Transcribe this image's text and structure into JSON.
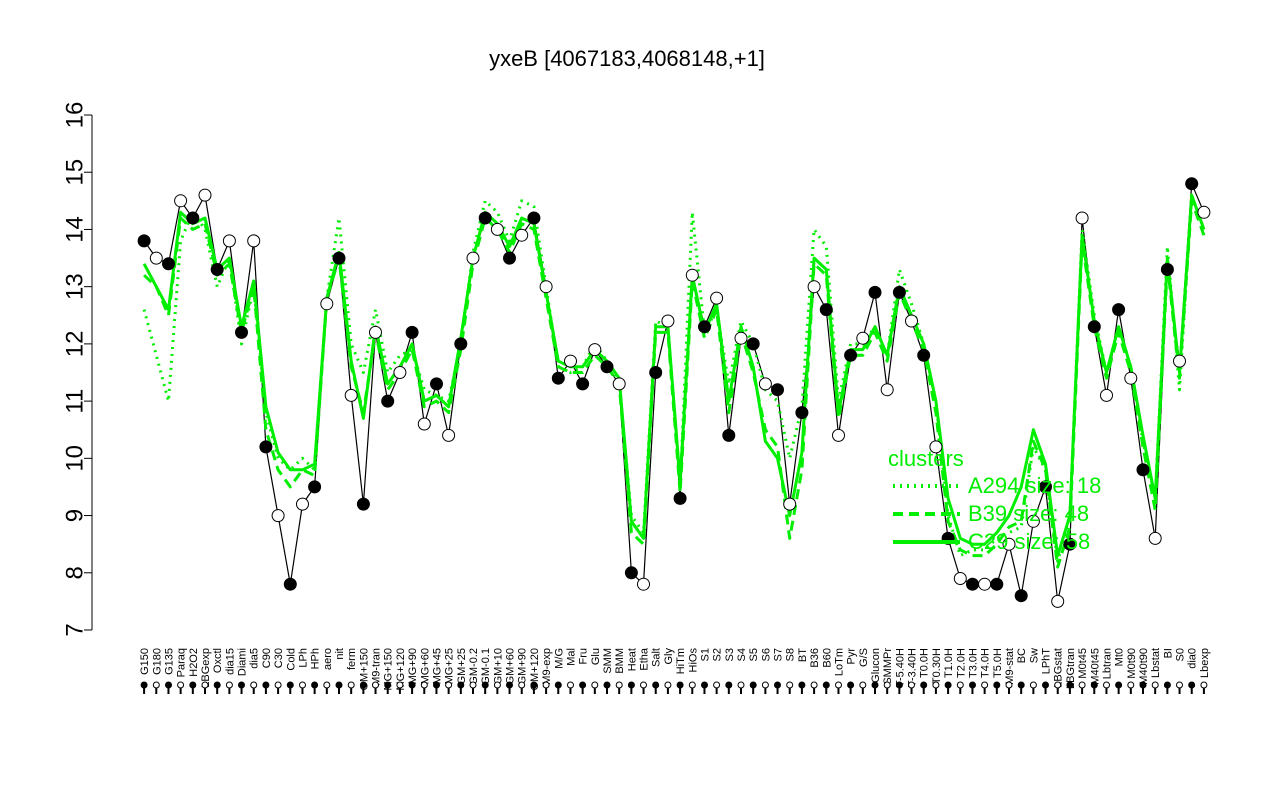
{
  "chart_data": {
    "type": "line",
    "title": "yxeB [4067183,4068148,+1]",
    "xlabel": "",
    "ylabel": "",
    "ylim": [
      7,
      16
    ],
    "yticks": [
      7,
      8,
      9,
      10,
      11,
      12,
      13,
      14,
      15,
      16
    ],
    "grid": false,
    "x_tick_labels": [
      "G150",
      "G180",
      "G135",
      "Paraq",
      "H2O2",
      "LBGexp",
      "Oxctl",
      "dia15",
      "Diami",
      "dia5",
      "C90",
      "C30",
      "Cold",
      "LPh",
      "HPh",
      "aero",
      "nit",
      "ferm",
      "GM+150",
      "M9-tran",
      "MG+150",
      "MG+120",
      "MG+90",
      "MG+60",
      "MG+45",
      "MG+25",
      "GM+25",
      "GM-0.2",
      "GM-0.1",
      "GM+10",
      "GM+60",
      "GM+90",
      "GM+120",
      "M9-exp",
      "M/G",
      "Mal",
      "Fru",
      "Glu",
      "SMM",
      "BMM",
      "Heat",
      "Etha",
      "Salt",
      "Gly",
      "HiTm",
      "HiOs",
      "S1",
      "S2",
      "S3",
      "S4",
      "S5",
      "S6",
      "S7",
      "S8",
      "BT",
      "B36",
      "B60",
      "LoTm",
      "Pyr",
      "G/S",
      "Glucon",
      "SMMPr",
      "T-5.40H",
      "T-3.40H",
      "T0.0H",
      "T0.30H",
      "T1.0H",
      "T2.0H",
      "T3.0H",
      "T4.0H",
      "T5.0H",
      "M9-stat",
      "BC",
      "Sw",
      "LPhT",
      "LBGstat",
      "LBGtran",
      "M0t45",
      "M40t45",
      "Lbtran",
      "Mt0",
      "M0t90",
      "M40t90",
      "Lbstat",
      "BI",
      "S0",
      "dia0",
      "Lbexp"
    ],
    "legend": {
      "title": "clusters",
      "entries": [
        {
          "name": "A294 size: 18",
          "style": "dotted"
        },
        {
          "name": "B39 size: 48",
          "style": "dashed"
        },
        {
          "name": "C29 size: 58",
          "style": "solid"
        }
      ],
      "placement": "right"
    },
    "series": [
      {
        "name": "profile",
        "color": "#000000",
        "style": "solid-with-markers",
        "values": [
          13.8,
          13.5,
          13.4,
          14.5,
          14.2,
          14.6,
          13.3,
          13.8,
          12.2,
          13.8,
          10.2,
          9.0,
          7.8,
          9.2,
          9.5,
          12.7,
          13.5,
          11.1,
          9.2,
          12.2,
          11.0,
          11.5,
          12.2,
          10.6,
          11.3,
          10.4,
          12.0,
          13.5,
          14.2,
          14.0,
          13.5,
          13.9,
          14.2,
          13.0,
          11.4,
          11.7,
          11.3,
          11.9,
          11.6,
          11.3,
          8.0,
          7.8,
          11.5,
          12.4,
          9.3,
          13.2,
          12.3,
          12.8,
          10.4,
          12.1,
          12.0,
          11.3,
          11.2,
          9.2,
          10.8,
          13.0,
          12.6,
          10.4,
          11.8,
          12.1,
          12.9,
          11.2,
          12.9,
          12.4,
          11.8,
          10.2,
          8.6,
          7.9,
          7.8,
          7.8,
          7.8,
          8.5,
          7.6,
          8.9,
          9.5,
          7.5,
          8.5,
          14.2,
          12.3,
          11.1,
          12.6,
          11.4,
          9.8,
          8.6,
          13.3,
          11.7,
          14.8,
          14.3
        ],
        "marker_labels": [
          "G150",
          "G180",
          "G135",
          "Paraq",
          "H2O2",
          "LBGexp",
          "Oxctl",
          "dia15",
          "Diami",
          "dia5",
          "C90",
          "C30",
          "Cold",
          "LPh",
          "HPh",
          "aero",
          "nit",
          "ferm",
          "GM+150",
          "M9-tran",
          "MG+150",
          "MG+120",
          "MG+90",
          "MG+60",
          "MG+45",
          "MG+25",
          "GM+25",
          "GM-0.2",
          "GM-0.1",
          "GM+10",
          "GM+60",
          "GM+90",
          "GM+120",
          "M9-exp",
          "M/G",
          "Mal",
          "Fru",
          "Glu",
          "SMM",
          "BMM",
          "Heat",
          "Etha",
          "Salt",
          "Gly",
          "HiTm",
          "HiOs",
          "S1",
          "S2",
          "S3",
          "S4",
          "S5",
          "S6",
          "S7",
          "S8",
          "BT",
          "B36",
          "B60",
          "LoTm",
          "Pyr",
          "G/S",
          "Glucon",
          "SMMPr",
          "T-5.40H",
          "T-3.40H",
          "T0.0H",
          "T0.30H",
          "T1.0H",
          "T2.0H",
          "T3.0H",
          "T4.0H",
          "T5.0H",
          "M9-stat",
          "BC",
          "Sw",
          "LPhT",
          "LBGstat",
          "LBGtran",
          "M0t45",
          "M40t45",
          "Lbtran",
          "Mt0",
          "M0t90",
          "M40t90",
          "Lbstat",
          "BI",
          "S0",
          "dia0",
          "Lbexp"
        ]
      },
      {
        "name": "A294 size: 18",
        "color": "#00ee00",
        "style": "dotted",
        "values": [
          12.6,
          11.8,
          11.0,
          13.8,
          14.3,
          14.0,
          13.0,
          13.5,
          12.0,
          13.0,
          10.8,
          10.0,
          9.8,
          10.0,
          9.8,
          12.8,
          14.2,
          12.0,
          11.5,
          12.6,
          11.5,
          11.8,
          11.9,
          11.2,
          11.1,
          11.0,
          12.0,
          13.6,
          14.5,
          14.3,
          13.8,
          14.5,
          14.4,
          13.0,
          11.6,
          11.5,
          11.6,
          12.0,
          11.7,
          11.3,
          9.0,
          8.7,
          12.4,
          12.3,
          9.5,
          14.3,
          12.2,
          12.6,
          11.3,
          12.4,
          12.0,
          11.2,
          11.0,
          10.0,
          10.9,
          14.0,
          13.7,
          11.0,
          12.0,
          12.0,
          12.3,
          11.8,
          13.3,
          12.7,
          12.0,
          11.0,
          9.0,
          8.3,
          8.4,
          8.4,
          8.6,
          8.7,
          8.8,
          10.2,
          9.8,
          8.2,
          9.0,
          14.0,
          12.5,
          11.5,
          12.3,
          11.6,
          10.3,
          9.3,
          13.7,
          11.2,
          14.6,
          14.0
        ]
      },
      {
        "name": "B39 size: 48",
        "color": "#00ee00",
        "style": "dashed",
        "values": [
          13.2,
          13.0,
          12.5,
          14.2,
          14.0,
          14.1,
          13.2,
          13.4,
          12.2,
          13.0,
          10.5,
          9.8,
          9.5,
          9.8,
          9.7,
          12.8,
          13.5,
          11.6,
          10.8,
          12.2,
          11.2,
          11.5,
          11.9,
          10.9,
          11.0,
          10.8,
          11.9,
          13.4,
          14.2,
          14.0,
          13.6,
          14.1,
          14.0,
          12.8,
          11.6,
          11.5,
          11.5,
          11.8,
          11.6,
          11.3,
          8.7,
          8.5,
          12.2,
          12.2,
          9.4,
          13.1,
          12.1,
          12.6,
          10.8,
          12.2,
          11.5,
          10.5,
          10.2,
          8.6,
          9.8,
          13.4,
          13.2,
          10.7,
          11.8,
          11.8,
          12.2,
          11.7,
          12.9,
          12.4,
          11.9,
          10.8,
          8.9,
          8.4,
          8.3,
          8.3,
          8.5,
          8.8,
          8.9,
          10.3,
          9.8,
          8.1,
          8.8,
          13.8,
          12.3,
          11.4,
          12.2,
          11.5,
          10.2,
          9.1,
          13.4,
          11.4,
          14.5,
          13.9
        ]
      },
      {
        "name": "C29 size: 58",
        "color": "#00ee00",
        "style": "solid",
        "values": [
          13.4,
          13.0,
          12.6,
          14.3,
          14.1,
          14.2,
          13.3,
          13.5,
          12.3,
          13.1,
          10.9,
          10.1,
          9.8,
          9.8,
          9.9,
          12.8,
          13.6,
          11.7,
          10.7,
          12.3,
          11.3,
          11.6,
          12.0,
          11.0,
          11.1,
          10.9,
          12.1,
          13.5,
          14.3,
          14.1,
          13.7,
          14.2,
          14.1,
          12.9,
          11.7,
          11.6,
          11.6,
          11.9,
          11.7,
          11.4,
          8.9,
          8.6,
          12.3,
          12.3,
          9.6,
          13.2,
          12.2,
          12.7,
          11.0,
          12.3,
          11.6,
          10.3,
          10.0,
          9.0,
          10.1,
          13.5,
          13.3,
          10.8,
          11.9,
          11.9,
          12.3,
          11.8,
          13.0,
          12.5,
          12.0,
          11.0,
          9.3,
          8.6,
          8.5,
          8.5,
          8.7,
          9.0,
          9.5,
          10.5,
          9.9,
          8.3,
          9.0,
          13.9,
          12.4,
          11.5,
          12.3,
          11.6,
          10.4,
          9.3,
          13.5,
          11.5,
          14.6,
          14.0
        ]
      }
    ]
  }
}
